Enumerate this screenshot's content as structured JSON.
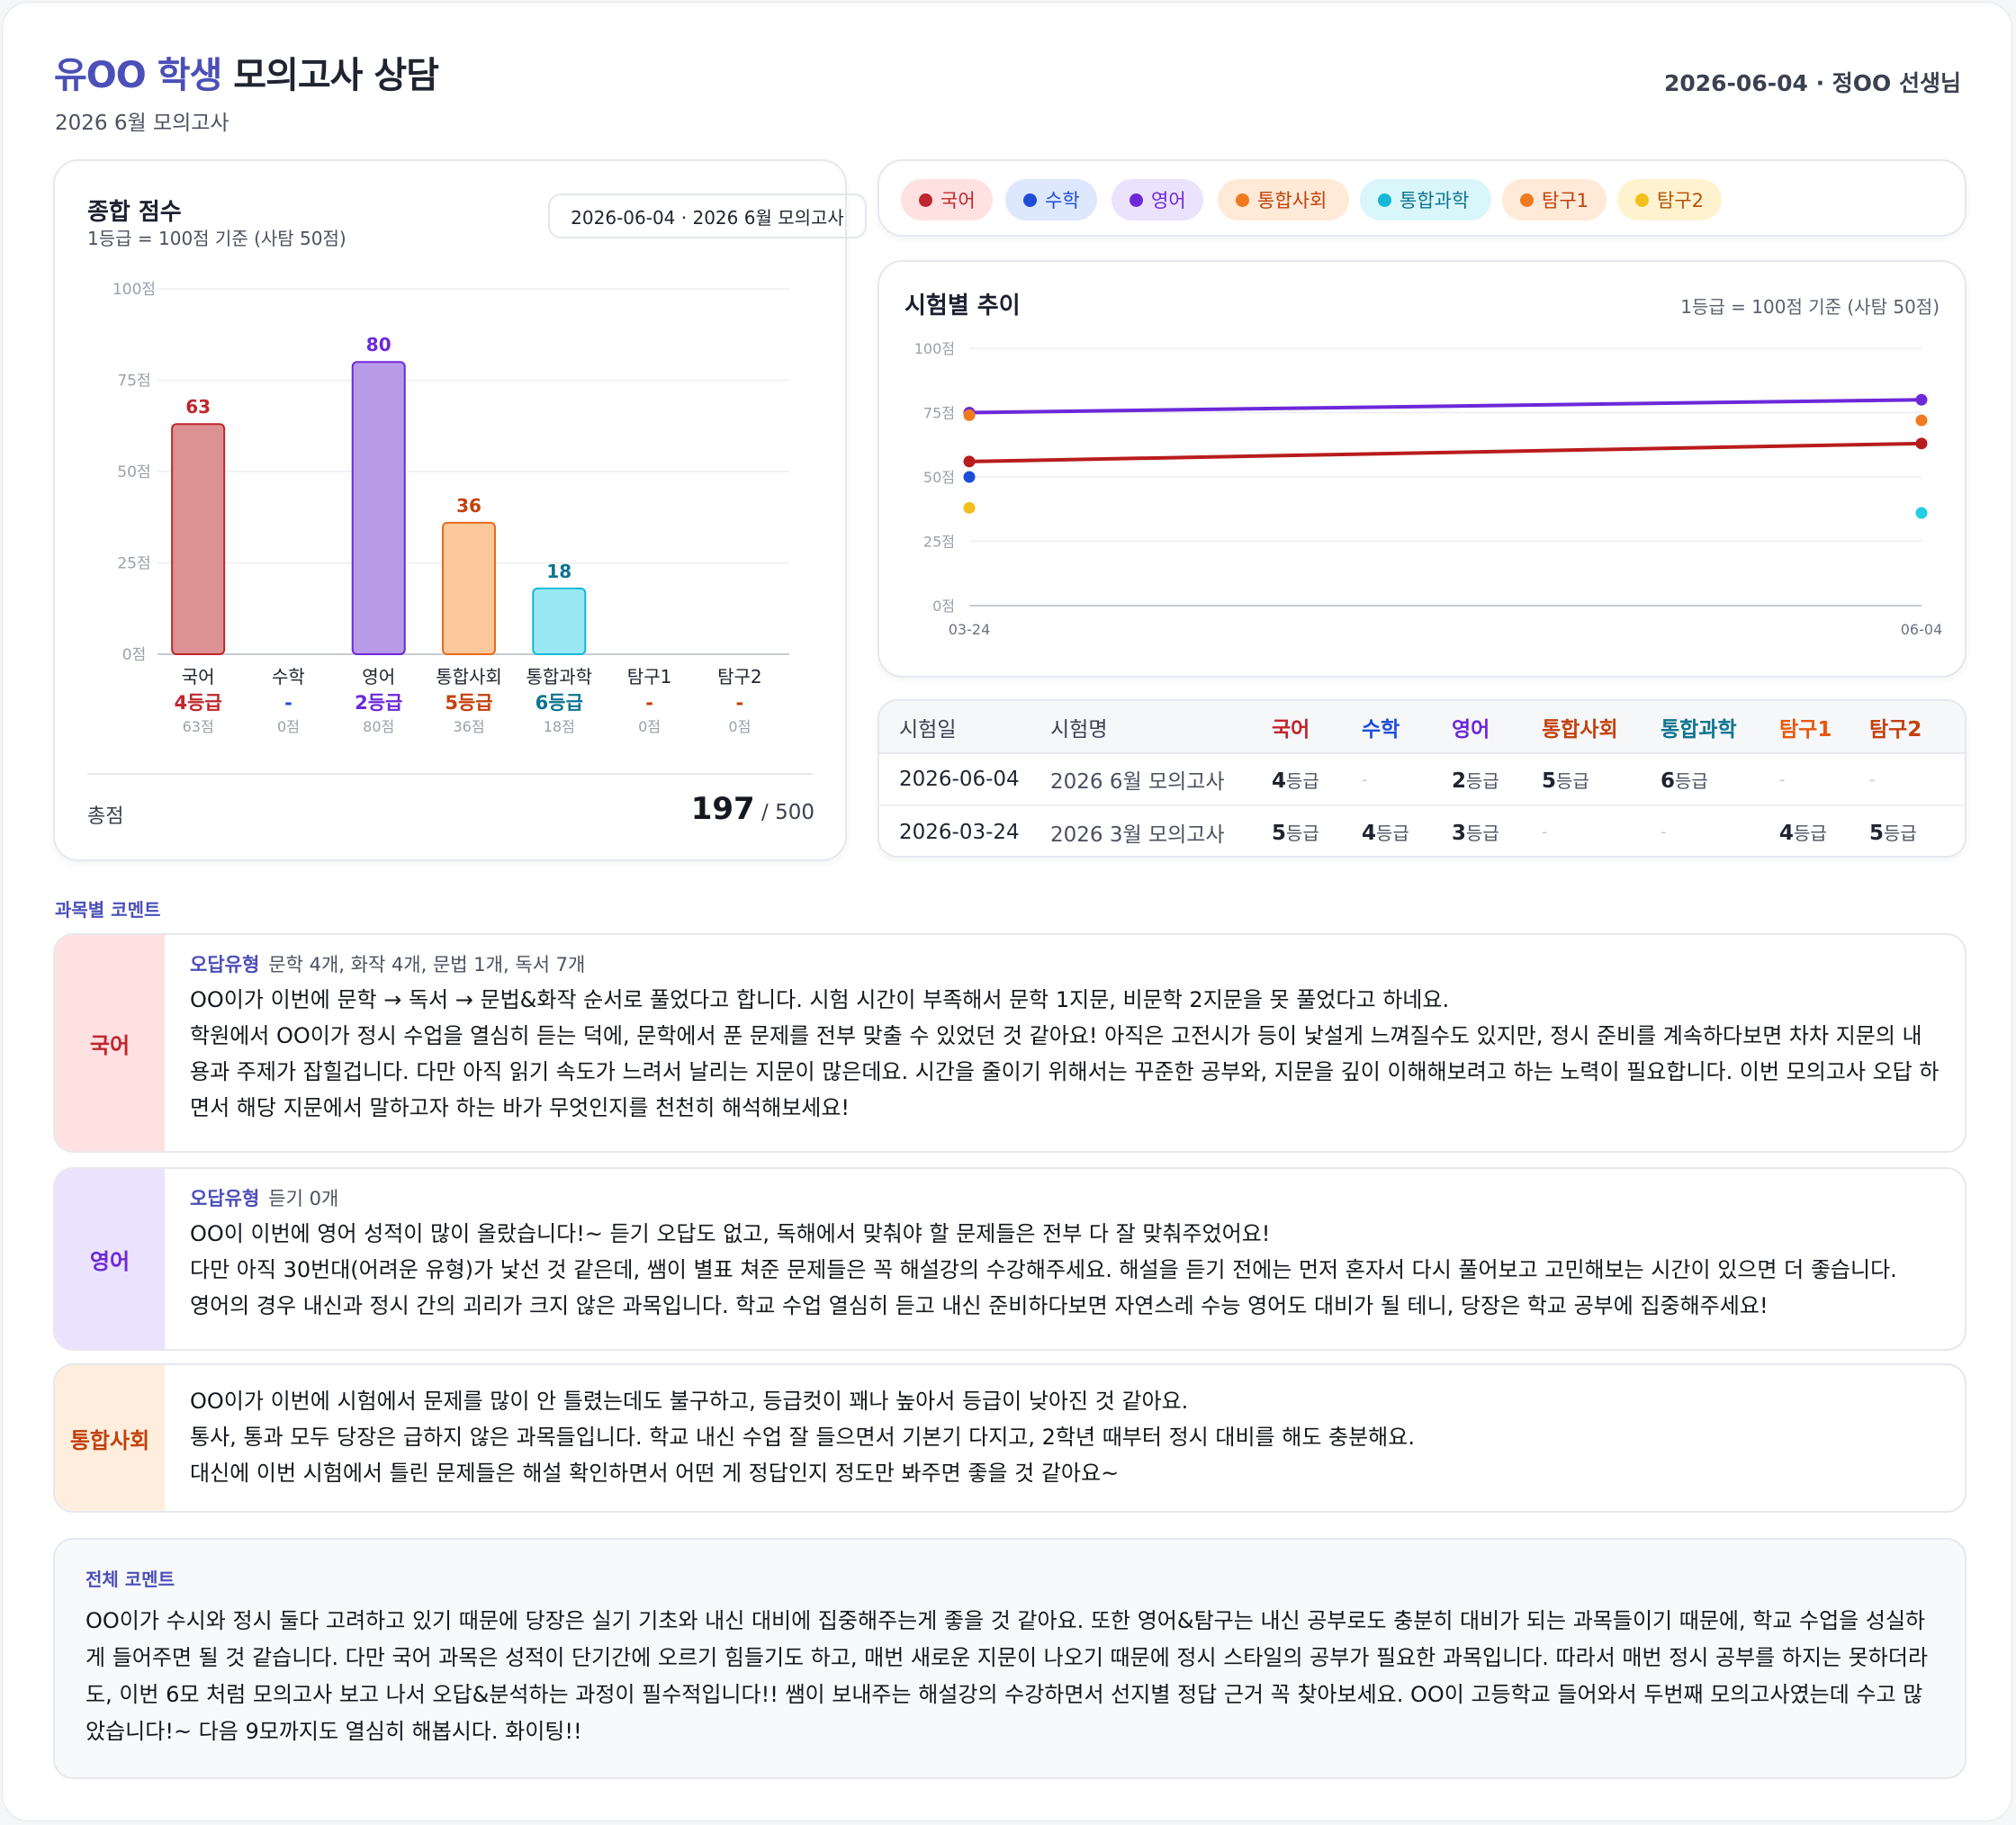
{
  "header": {
    "student": "유OO 학생",
    "title_rest": "모의고사 상담",
    "subtitle": "2026 6월 모의고사",
    "right": "2026-06-04 · 정OO 선생님"
  },
  "colors": {
    "accent": "#4b4fb8",
    "국어": "#c0262d",
    "수학": "#1d4ed8",
    "영어": "#6d28d9",
    "통합사회": "#ea6a1a",
    "통합과학": "#13b8d6",
    "탐구1": "#f07a1f",
    "탐구2": "#f4bf1b"
  },
  "score_card": {
    "title": "종합 점수",
    "caption": "1등급 = 100점 기준 (사탐 50점)",
    "date_pill": "2026-06-04 · 2026 6월 모의고사",
    "total_label": "총점",
    "total_value": "197",
    "total_max": "/ 500",
    "subjects": [
      {
        "name": "국어",
        "grade": "4등급",
        "score_label": "63점"
      },
      {
        "name": "수학",
        "grade": "-",
        "score_label": "0점"
      },
      {
        "name": "영어",
        "grade": "2등급",
        "score_label": "80점"
      },
      {
        "name": "통합사회",
        "grade": "5등급",
        "score_label": "36점"
      },
      {
        "name": "통합과학",
        "grade": "6등급",
        "score_label": "18점"
      },
      {
        "name": "탐구1",
        "grade": "-",
        "score_label": "0점"
      },
      {
        "name": "탐구2",
        "grade": "-",
        "score_label": "0점"
      }
    ]
  },
  "legend": [
    "국어",
    "수학",
    "영어",
    "통합사회",
    "통합과학",
    "탐구1",
    "탐구2"
  ],
  "trend": {
    "title": "시험별 추이",
    "caption": "1등급 = 100점 기준 (사탐 50점)"
  },
  "chart_data": [
    {
      "type": "bar",
      "title": "종합 점수",
      "categories": [
        "국어",
        "수학",
        "영어",
        "통합사회",
        "통합과학",
        "탐구1",
        "탐구2"
      ],
      "values": [
        63,
        0,
        80,
        36,
        18,
        0,
        0
      ],
      "data_labels": [
        "63",
        "",
        "80",
        "36",
        "18",
        "",
        ""
      ],
      "bar_colors": [
        "#dc9192",
        null,
        "#b79be9",
        "#fdc89b",
        "#9ae8f4",
        null,
        null
      ],
      "bar_borders": [
        "#c0262d",
        null,
        "#6d28d9",
        "#ea6a1a",
        "#13b8d6",
        null,
        null
      ],
      "label_colors": [
        "#c0262d",
        null,
        "#6d28d9",
        "#c2410c",
        "#0e7490",
        null,
        null
      ],
      "ylim": [
        0,
        100
      ],
      "yticks": [
        "0점",
        "25점",
        "50점",
        "75점",
        "100점"
      ],
      "ytick_values": [
        0,
        25,
        50,
        75,
        100
      ],
      "grid": true
    },
    {
      "type": "line",
      "title": "시험별 추이",
      "x": [
        "03-24",
        "06-04"
      ],
      "ylim": [
        0,
        100
      ],
      "yticks": [
        "0점",
        "25점",
        "50점",
        "75점",
        "100점"
      ],
      "ytick_values": [
        0,
        25,
        50,
        75,
        100
      ],
      "grid": true,
      "series": [
        {
          "name": "국어",
          "color": "#b91c1c",
          "values": [
            56,
            63
          ]
        },
        {
          "name": "영어",
          "color": "#6d28d9",
          "values": [
            75,
            80
          ]
        },
        {
          "name": "수학",
          "color": "#1d4ed8",
          "values": [
            50,
            null
          ]
        },
        {
          "name": "통합사회",
          "color": "#f07a1f",
          "values": [
            null,
            72
          ]
        },
        {
          "name": "통합과학",
          "color": "#22cde6",
          "values": [
            null,
            36
          ]
        },
        {
          "name": "탐구1",
          "color": "#f07a1f",
          "values": [
            74,
            null
          ]
        },
        {
          "name": "탐구2",
          "color": "#f4bf1b",
          "values": [
            38,
            null
          ]
        }
      ]
    }
  ],
  "table": {
    "headers": [
      "시험일",
      "시험명",
      "국어",
      "수학",
      "영어",
      "통합사회",
      "통합과학",
      "탐구1",
      "탐구2"
    ],
    "rows": [
      {
        "date": "2026-06-04",
        "name": "2026 6월 모의고사",
        "cells": [
          [
            "4",
            "등급"
          ],
          [
            "-",
            ""
          ],
          [
            "2",
            "등급"
          ],
          [
            "5",
            "등급"
          ],
          [
            "6",
            "등급"
          ],
          [
            "-",
            ""
          ],
          [
            "-",
            ""
          ]
        ]
      },
      {
        "date": "2026-03-24",
        "name": "2026 3월 모의고사",
        "cells": [
          [
            "5",
            "등급"
          ],
          [
            "4",
            "등급"
          ],
          [
            "3",
            "등급"
          ],
          [
            "-",
            ""
          ],
          [
            "-",
            ""
          ],
          [
            "4",
            "등급"
          ],
          [
            "5",
            "등급"
          ]
        ]
      }
    ]
  },
  "comments_label": "과목별 코멘트",
  "comments": [
    {
      "subject": "국어",
      "wrong_label": "오답유형",
      "wrong_text": "문학 4개, 화작 4개, 문법 1개, 독서 7개",
      "lines": [
        "OO이가 이번에 문학 → 독서 → 문법&화작 순서로 풀었다고 합니다. 시험 시간이 부족해서 문학 1지문, 비문학 2지문을 못 풀었다고 하네요.",
        "학원에서 OO이가 정시 수업을 열심히 듣는 덕에, 문학에서 푼 문제를 전부 맞출 수 있었던 것 같아요! 아직은 고전시가 등이 낯설게 느껴질수도 있지만, 정시 준비를 계속하다보면 차차 지문의 내용과 주제가 잡힐겁니다. 다만 아직 읽기 속도가 느려서 날리는 지문이 많은데요. 시간을 줄이기 위해서는 꾸준한 공부와, 지문을 깊이 이해해보려고 하는 노력이 필요합니다. 이번 모의고사 오답 하면서 해당 지문에서 말하고자 하는 바가 무엇인지를 천천히 해석해보세요!"
      ]
    },
    {
      "subject": "영어",
      "wrong_label": "오답유형",
      "wrong_text": "듣기 0개",
      "lines": [
        "OO이 이번에 영어 성적이 많이 올랐습니다!~ 듣기 오답도 없고, 독해에서 맞춰야 할 문제들은 전부 다 잘 맞춰주었어요!",
        "다만 아직 30번대(어려운 유형)가 낯선 것 같은데, 쌤이 별표 쳐준 문제들은 꼭 해설강의 수강해주세요. 해설을 듣기 전에는 먼저 혼자서 다시 풀어보고 고민해보는 시간이 있으면 더 좋습니다.",
        "영어의 경우 내신과 정시 간의 괴리가 크지 않은 과목입니다. 학교 수업 열심히 듣고 내신 준비하다보면 자연스레 수능 영어도 대비가 될 테니, 당장은 학교 공부에 집중해주세요!"
      ]
    },
    {
      "subject": "통합사회",
      "lines": [
        "OO이가 이번에 시험에서 문제를 많이 안 틀렸는데도 불구하고, 등급컷이 꽤나 높아서 등급이 낮아진 것 같아요.",
        "통사, 통과 모두 당장은 급하지 않은 과목들입니다. 학교 내신 수업 잘 들으면서 기본기 다지고, 2학년 때부터 정시 대비를 해도 충분해요.",
        "대신에 이번 시험에서 틀린 문제들은 해설 확인하면서 어떤 게 정답인지 정도만 봐주면 좋을 것 같아요~"
      ]
    }
  ],
  "overall": {
    "label": "전체 코멘트",
    "text": "OO이가 수시와 정시 둘다 고려하고 있기 때문에 당장은 실기 기초와 내신 대비에 집중해주는게 좋을 것 같아요. 또한 영어&탐구는 내신 공부로도 충분히 대비가 되는 과목들이기 때문에, 학교 수업을 성실하게 들어주면 될 것 같습니다. 다만 국어 과목은 성적이 단기간에 오르기 힘들기도 하고, 매번 새로운 지문이 나오기 때문에 정시 스타일의 공부가 필요한 과목입니다. 따라서 매번 정시 공부를 하지는 못하더라도, 이번 6모 처럼 모의고사 보고 나서 오답&분석하는 과정이 필수적입니다!! 쌤이 보내주는 해설강의 수강하면서 선지별 정답 근거 꼭 찾아보세요. OO이 고등학교 들어와서 두번째 모의고사였는데 수고 많았습니다!~ 다음 9모까지도 열심히 해봅시다. 화이팅!!"
  }
}
